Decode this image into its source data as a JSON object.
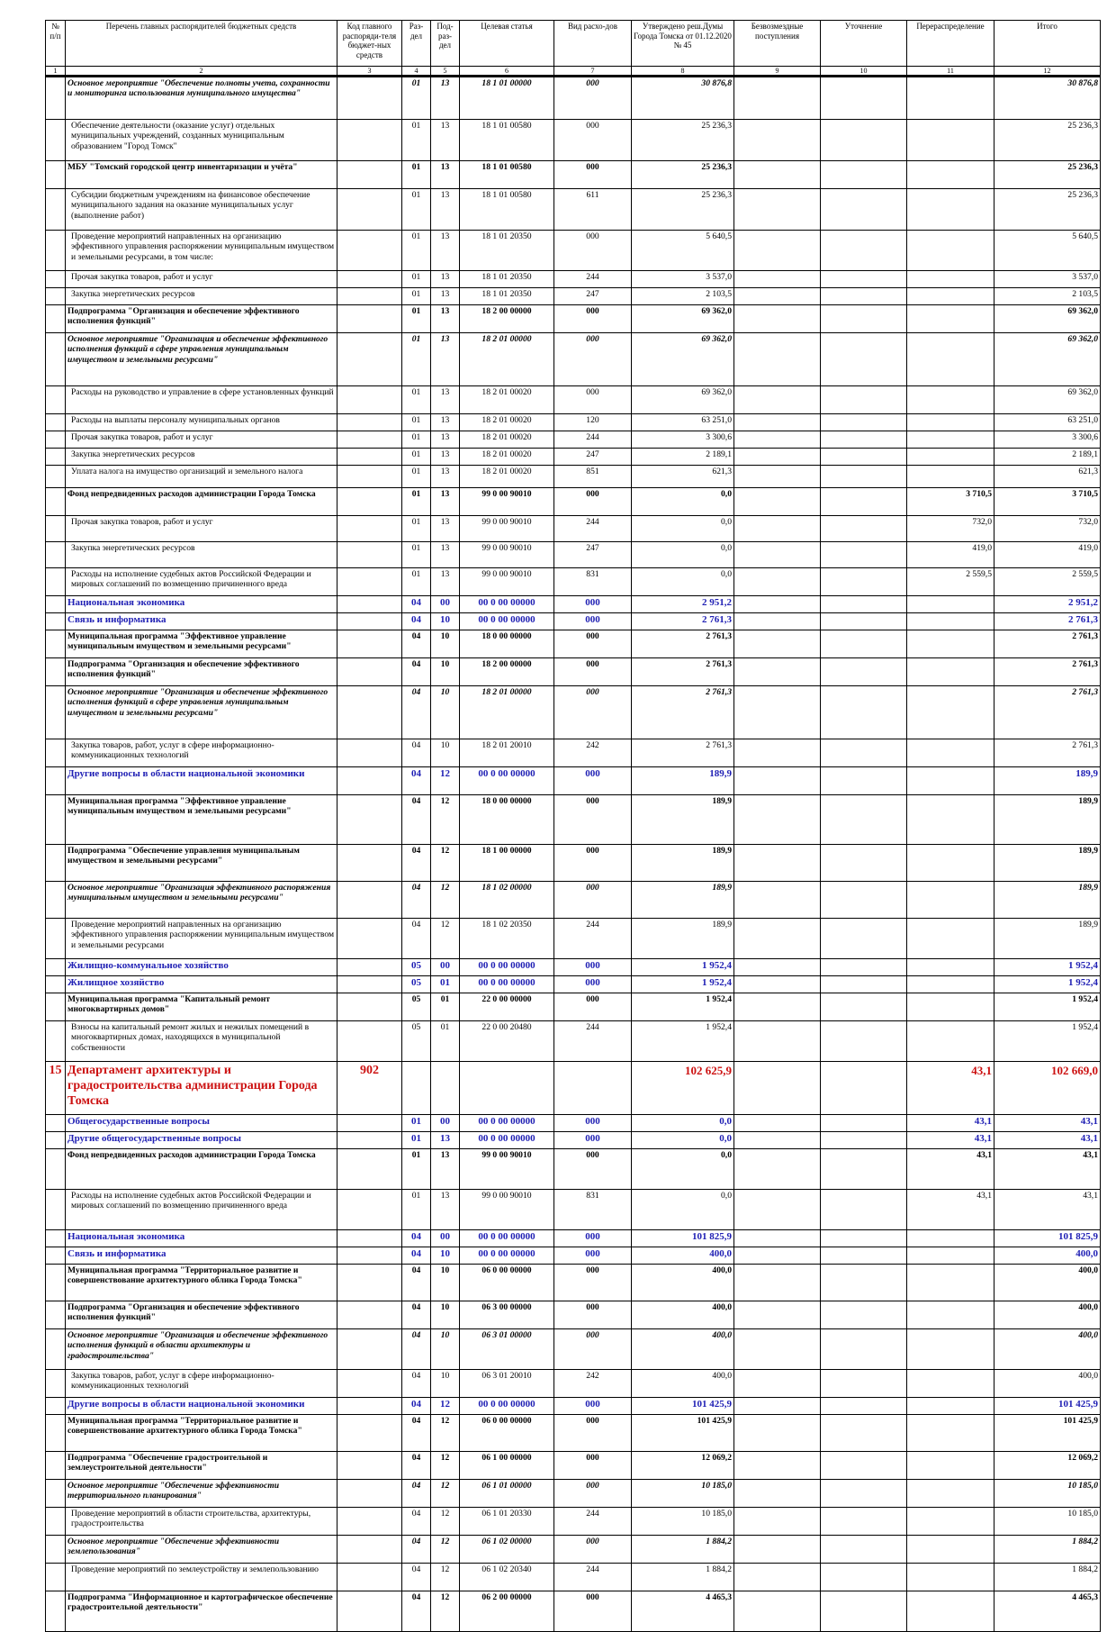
{
  "header": {
    "col1": "№ п/п",
    "col2": "Перечень главных распорядителей бюджетных средств",
    "col3": "Код главного распоряди-теля бюджет-ных средств",
    "col4": "Раз-дел",
    "col5": "Под-раз-дел",
    "col6": "Целевая статья",
    "col7": "Вид расхо-дов",
    "col8": "Утверждено реш.Думы Города Томска от 01.12.2020 № 45",
    "col9": "Безвозмездные поступления",
    "col10": "Уточнение",
    "col11": "Перераспределение",
    "col12": "Итого"
  },
  "numbers": [
    "1",
    "2",
    "3",
    "4",
    "5",
    "6",
    "7",
    "8",
    "9",
    "10",
    "11",
    "12"
  ],
  "rows": [
    {
      "style": "bolditalic",
      "h": 46,
      "c": [
        "",
        "Основное мероприятие \"Обеспечение полноты учета, сохранности и мониторинга использования муниципального имущества\"",
        "",
        "01",
        "13",
        "18 1 01 00000",
        "000",
        "30 876,8",
        "",
        "",
        "",
        "30 876,8"
      ]
    },
    {
      "style": "norm",
      "h": 45,
      "c": [
        "",
        "Обеспечение деятельности (оказание услуг) отдельных муниципальных учреждений, созданных муниципальным образованием \"Город Томск\"",
        "",
        "01",
        "13",
        "18 1 01 00580",
        "000",
        "25 236,3",
        "",
        "",
        "",
        "25 236,3"
      ]
    },
    {
      "style": "bold",
      "h": 30,
      "c": [
        "",
        "МБУ \"Томский городской центр инвентаризации и учёта\"",
        "",
        "01",
        "13",
        "18 1 01 00580",
        "000",
        "25 236,3",
        "",
        "",
        "",
        "25 236,3"
      ]
    },
    {
      "style": "norm",
      "h": 45,
      "c": [
        "",
        "Субсидии бюджетным учреждениям на финансовое обеспечение муниципального задания на оказание муниципальных услуг (выполнение работ)",
        "",
        "01",
        "13",
        "18 1 01 00580",
        "611",
        "25 236,3",
        "",
        "",
        "",
        "25 236,3"
      ]
    },
    {
      "style": "norm",
      "h": 44,
      "c": [
        "",
        "Проведение мероприятий направленных на организацию эффективного управления распоряжении муниципальным имуществом и земельными ресурсами, в том числе:",
        "",
        "01",
        "13",
        "18 1 01 20350",
        "000",
        "5 640,5",
        "",
        "",
        "",
        "5 640,5"
      ]
    },
    {
      "style": "norm",
      "h": 18,
      "c": [
        "",
        "Прочая закупка товаров, работ и услуг",
        "",
        "01",
        "13",
        "18 1 01 20350",
        "244",
        "3 537,0",
        "",
        "",
        "",
        "3 537,0"
      ]
    },
    {
      "style": "norm",
      "h": 18,
      "c": [
        "",
        "Закупка энергетических ресурсов",
        "",
        "01",
        "13",
        "18 1 01 20350",
        "247",
        "2 103,5",
        "",
        "",
        "",
        "2 103,5"
      ]
    },
    {
      "style": "bold",
      "h": 30,
      "c": [
        "",
        "Подпрограмма \"Организация и обеспечение эффективного исполнения функций\"",
        "",
        "01",
        "13",
        "18 2 00 00000",
        "000",
        "69 362,0",
        "",
        "",
        "",
        "69 362,0"
      ]
    },
    {
      "style": "bolditalic",
      "h": 58,
      "c": [
        "",
        "Основное мероприятие \"Организация и обеспечение эффективного исполнения функций в сфере управления муниципальным имуществом и земельными ресурсами\"",
        "",
        "01",
        "13",
        "18 2 01 00000",
        "000",
        "69 362,0",
        "",
        "",
        "",
        "69 362,0"
      ]
    },
    {
      "style": "norm",
      "h": 30,
      "c": [
        "",
        "Расходы на руководство и управление в сфере установленных функций",
        "",
        "01",
        "13",
        "18 2 01 00020",
        "000",
        "69 362,0",
        "",
        "",
        "",
        "69 362,0"
      ]
    },
    {
      "style": "norm",
      "h": 18,
      "c": [
        "",
        "Расходы на выплаты персоналу муниципальных органов",
        "",
        "01",
        "13",
        "18 2 01 00020",
        "120",
        "63 251,0",
        "",
        "",
        "",
        "63 251,0"
      ]
    },
    {
      "style": "norm",
      "h": 18,
      "c": [
        "",
        "Прочая закупка товаров, работ и услуг",
        "",
        "01",
        "13",
        "18 2 01 00020",
        "244",
        "3 300,6",
        "",
        "",
        "",
        "3 300,6"
      ]
    },
    {
      "style": "norm",
      "h": 18,
      "c": [
        "",
        "Закупка энергетических ресурсов",
        "",
        "01",
        "13",
        "18 2 01 00020",
        "247",
        "2 189,1",
        "",
        "",
        "",
        "2 189,1"
      ]
    },
    {
      "style": "norm",
      "h": 24,
      "c": [
        "",
        "Уплата налога на имущество организаций и земельного налога",
        "",
        "01",
        "13",
        "18 2 01 00020",
        "851",
        "621,3",
        "",
        "",
        "",
        "621,3"
      ]
    },
    {
      "style": "bold",
      "h": 30,
      "c": [
        "",
        "Фонд непредвиденных расходов администрации Города Томска",
        "",
        "01",
        "13",
        "99 0 00 90010",
        "000",
        "0,0",
        "",
        "",
        "3 710,5",
        "3 710,5"
      ]
    },
    {
      "style": "norm",
      "h": 28,
      "c": [
        "",
        "Прочая закупка товаров, работ и услуг",
        "",
        "01",
        "13",
        "99 0 00 90010",
        "244",
        "0,0",
        "",
        "",
        "732,0",
        "732,0"
      ]
    },
    {
      "style": "norm",
      "h": 28,
      "c": [
        "",
        "Закупка энергетических ресурсов",
        "",
        "01",
        "13",
        "99 0 00 90010",
        "247",
        "0,0",
        "",
        "",
        "419,0",
        "419,0"
      ]
    },
    {
      "style": "norm",
      "h": 30,
      "c": [
        "",
        "Расходы на исполнение судебных актов Российской Федерации и мировых соглашений по возмещению причиненного вреда",
        "",
        "01",
        "13",
        "99 0 00 90010",
        "831",
        "0,0",
        "",
        "",
        "2 559,5",
        "2 559,5"
      ]
    },
    {
      "style": "blue",
      "h": 18,
      "c": [
        "",
        "Национальная экономика",
        "",
        "04",
        "00",
        "00 0 00 00000",
        "000",
        "2 951,2",
        "",
        "",
        "",
        "2 951,2"
      ]
    },
    {
      "style": "blue",
      "h": 18,
      "c": [
        "",
        "Связь и информатика",
        "",
        "04",
        "10",
        "00 0 00 00000",
        "000",
        "2 761,3",
        "",
        "",
        "",
        "2 761,3"
      ]
    },
    {
      "style": "bold",
      "h": 30,
      "c": [
        "",
        "Муниципальная программа \"Эффективное управление муниципальным имуществом и земельными ресурсами\"",
        "",
        "04",
        "10",
        "18 0 00 00000",
        "000",
        "2 761,3",
        "",
        "",
        "",
        "2 761,3"
      ]
    },
    {
      "style": "bold",
      "h": 30,
      "c": [
        "",
        "Подпрограмма \"Организация и обеспечение эффективного исполнения функций\"",
        "",
        "04",
        "10",
        "18 2 00 00000",
        "000",
        "2 761,3",
        "",
        "",
        "",
        "2 761,3"
      ]
    },
    {
      "style": "bolditalic",
      "h": 58,
      "c": [
        "",
        "Основное мероприятие \"Организация и обеспечение эффективного исполнения функций в сфере управления муниципальным имуществом и земельными ресурсами\"",
        "",
        "04",
        "10",
        "18 2 01 00000",
        "000",
        "2 761,3",
        "",
        "",
        "",
        "2 761,3"
      ]
    },
    {
      "style": "norm",
      "h": 30,
      "c": [
        "",
        "Закупка товаров, работ, услуг в сфере информационно-коммуникационных технологий",
        "",
        "04",
        "10",
        "18 2 01 20010",
        "242",
        "2 761,3",
        "",
        "",
        "",
        "2 761,3"
      ]
    },
    {
      "style": "blue",
      "h": 30,
      "c": [
        "",
        "Другие вопросы в области национальной экономики",
        "",
        "04",
        "12",
        "00 0 00 00000",
        "000",
        "189,9",
        "",
        "",
        "",
        "189,9"
      ]
    },
    {
      "style": "bold",
      "h": 54,
      "c": [
        "",
        "Муниципальная программа \"Эффективное управление муниципальным имуществом и земельными ресурсами\"",
        "",
        "04",
        "12",
        "18 0 00 00000",
        "000",
        "189,9",
        "",
        "",
        "",
        "189,9"
      ]
    },
    {
      "style": "bold",
      "h": 40,
      "c": [
        "",
        "Подпрограмма \"Обеспечение управления муниципальным имуществом и земельными ресурсами\"",
        "",
        "04",
        "12",
        "18 1 00 00000",
        "000",
        "189,9",
        "",
        "",
        "",
        "189,9"
      ]
    },
    {
      "style": "bolditalic",
      "h": 40,
      "c": [
        "",
        "Основное мероприятие \"Организация эффективного распоряжения муниципальным имуществом и земельными ресурсами\"",
        "",
        "04",
        "12",
        "18 1 02 00000",
        "000",
        "189,9",
        "",
        "",
        "",
        "189,9"
      ]
    },
    {
      "style": "norm",
      "h": 44,
      "c": [
        "",
        "Проведение мероприятий направленных на организацию эффективного управления распоряжении муниципальным имуществом и земельными ресурсами",
        "",
        "04",
        "12",
        "18 1 02 20350",
        "244",
        "189,9",
        "",
        "",
        "",
        "189,9"
      ]
    },
    {
      "style": "blue",
      "h": 18,
      "c": [
        "",
        "Жилищно-коммунальное хозяйство",
        "",
        "05",
        "00",
        "00 0 00 00000",
        "000",
        "1 952,4",
        "",
        "",
        "",
        "1 952,4"
      ]
    },
    {
      "style": "blue",
      "h": 18,
      "c": [
        "",
        "Жилищное хозяйство",
        "",
        "05",
        "01",
        "00 0 00 00000",
        "000",
        "1 952,4",
        "",
        "",
        "",
        "1 952,4"
      ]
    },
    {
      "style": "bold",
      "h": 30,
      "c": [
        "",
        "Муниципальная программа \"Капитальный ремонт многоквартирных домов\"",
        "",
        "05",
        "01",
        "22 0 00 00000",
        "000",
        "1 952,4",
        "",
        "",
        "",
        "1 952,4"
      ]
    },
    {
      "style": "norm",
      "h": 44,
      "c": [
        "",
        "Взносы на капитальный ремонт жилых и нежилых помещений в многоквартирных домах, находящихся в муниципальной собственности",
        "",
        "05",
        "01",
        "22 0 00 20480",
        "244",
        "1 952,4",
        "",
        "",
        "",
        "1 952,4"
      ]
    },
    {
      "style": "red",
      "h": 58,
      "c": [
        "15",
        "Департамент архитектуры и градостроительства администрации Города Томска",
        "902",
        "",
        "",
        "",
        "",
        "102 625,9",
        "",
        "",
        "43,1",
        "102 669,0"
      ]
    },
    {
      "style": "blue",
      "h": 18,
      "c": [
        "",
        "Общегосударственные вопросы",
        "",
        "01",
        "00",
        "00 0 00 00000",
        "000",
        "0,0",
        "",
        "",
        "43,1",
        "43,1"
      ]
    },
    {
      "style": "blue",
      "h": 18,
      "c": [
        "",
        "Другие общегосударственные вопросы",
        "",
        "01",
        "13",
        "00 0 00 00000",
        "000",
        "0,0",
        "",
        "",
        "43,1",
        "43,1"
      ]
    },
    {
      "style": "bold",
      "h": 44,
      "c": [
        "",
        "Фонд непредвиденных расходов администрации Города Томска",
        "",
        "01",
        "13",
        "99 0 00 90010",
        "000",
        "0,0",
        "",
        "",
        "43,1",
        "43,1"
      ]
    },
    {
      "style": "norm",
      "h": 44,
      "c": [
        "",
        "Расходы на исполнение судебных актов Российской Федерации и мировых соглашений по возмещению причиненного вреда",
        "",
        "01",
        "13",
        "99 0 00 90010",
        "831",
        "0,0",
        "",
        "",
        "43,1",
        "43,1"
      ]
    },
    {
      "style": "blue",
      "h": 18,
      "c": [
        "",
        "Национальная экономика",
        "",
        "04",
        "00",
        "00 0 00 00000",
        "000",
        "101 825,9",
        "",
        "",
        "",
        "101 825,9"
      ]
    },
    {
      "style": "blue",
      "h": 18,
      "c": [
        "",
        "Связь и информатика",
        "",
        "04",
        "10",
        "00 0 00 00000",
        "000",
        "400,0",
        "",
        "",
        "",
        "400,0"
      ]
    },
    {
      "style": "bold",
      "h": 40,
      "c": [
        "",
        "Муниципальная программа \"Территориальное развитие и совершенствование архитектурного облика Города Томска\"",
        "",
        "04",
        "10",
        "06 0 00 00000",
        "000",
        "400,0",
        "",
        "",
        "",
        "400,0"
      ]
    },
    {
      "style": "bold",
      "h": 30,
      "c": [
        "",
        "Подпрограмма \"Организация и обеспечение эффективного исполнения функций\"",
        "",
        "04",
        "10",
        "06 3 00 00000",
        "000",
        "400,0",
        "",
        "",
        "",
        "400,0"
      ]
    },
    {
      "style": "bolditalic",
      "h": 44,
      "c": [
        "",
        "Основное мероприятие \"Организация и обеспечение эффективного исполнения функций в области архитектуры и градостроительства\"",
        "",
        "04",
        "10",
        "06 3 01 00000",
        "000",
        "400,0",
        "",
        "",
        "",
        "400,0"
      ]
    },
    {
      "style": "norm",
      "h": 30,
      "c": [
        "",
        "Закупка товаров, работ, услуг в сфере информационно-коммуникационных технологий",
        "",
        "04",
        "10",
        "06 3 01 20010",
        "242",
        "400,0",
        "",
        "",
        "",
        "400,0"
      ]
    },
    {
      "style": "blue",
      "h": 18,
      "c": [
        "",
        "Другие вопросы в области национальной экономики",
        "",
        "04",
        "12",
        "00 0 00 00000",
        "000",
        "101 425,9",
        "",
        "",
        "",
        "101 425,9"
      ]
    },
    {
      "style": "bold",
      "h": 40,
      "c": [
        "",
        "Муниципальная программа \"Территориальное развитие и совершенствование архитектурного облика Города Томска\"",
        "",
        "04",
        "12",
        "06 0 00 00000",
        "000",
        "101 425,9",
        "",
        "",
        "",
        "101 425,9"
      ]
    },
    {
      "style": "bold",
      "h": 30,
      "c": [
        "",
        "Подпрограмма \"Обеспечение градостроительной и землеустроительной деятельности\"",
        "",
        "04",
        "12",
        "06 1 00 00000",
        "000",
        "12 069,2",
        "",
        "",
        "",
        "12 069,2"
      ]
    },
    {
      "style": "bolditalic",
      "h": 30,
      "c": [
        "",
        "Основное мероприятие \"Обеспечение эффективности территориального планирования\"",
        "",
        "04",
        "12",
        "06 1 01 00000",
        "000",
        "10 185,0",
        "",
        "",
        "",
        "10 185,0"
      ]
    },
    {
      "style": "norm",
      "h": 30,
      "c": [
        "",
        "Проведение мероприятий в области строительства, архитектуры, градостроительства",
        "",
        "04",
        "12",
        "06 1 01 20330",
        "244",
        "10 185,0",
        "",
        "",
        "",
        "10 185,0"
      ]
    },
    {
      "style": "bolditalic",
      "h": 30,
      "c": [
        "",
        "Основное мероприятие \"Обеспечение эффективности землепользования\"",
        "",
        "04",
        "12",
        "06 1 02 00000",
        "000",
        "1 884,2",
        "",
        "",
        "",
        "1 884,2"
      ]
    },
    {
      "style": "norm",
      "h": 30,
      "c": [
        "",
        "Проведение мероприятий по землеустройству и землепользованию",
        "",
        "04",
        "12",
        "06 1 02 20340",
        "244",
        "1 884,2",
        "",
        "",
        "",
        "1 884,2"
      ]
    },
    {
      "style": "bold",
      "h": 44,
      "c": [
        "",
        "Подпрограмма \"Информационное и картографическое обеспечение градостроительной деятельности\"",
        "",
        "04",
        "12",
        "06 2 00 00000",
        "000",
        "4 465,3",
        "",
        "",
        "",
        "4 465,3"
      ]
    }
  ]
}
